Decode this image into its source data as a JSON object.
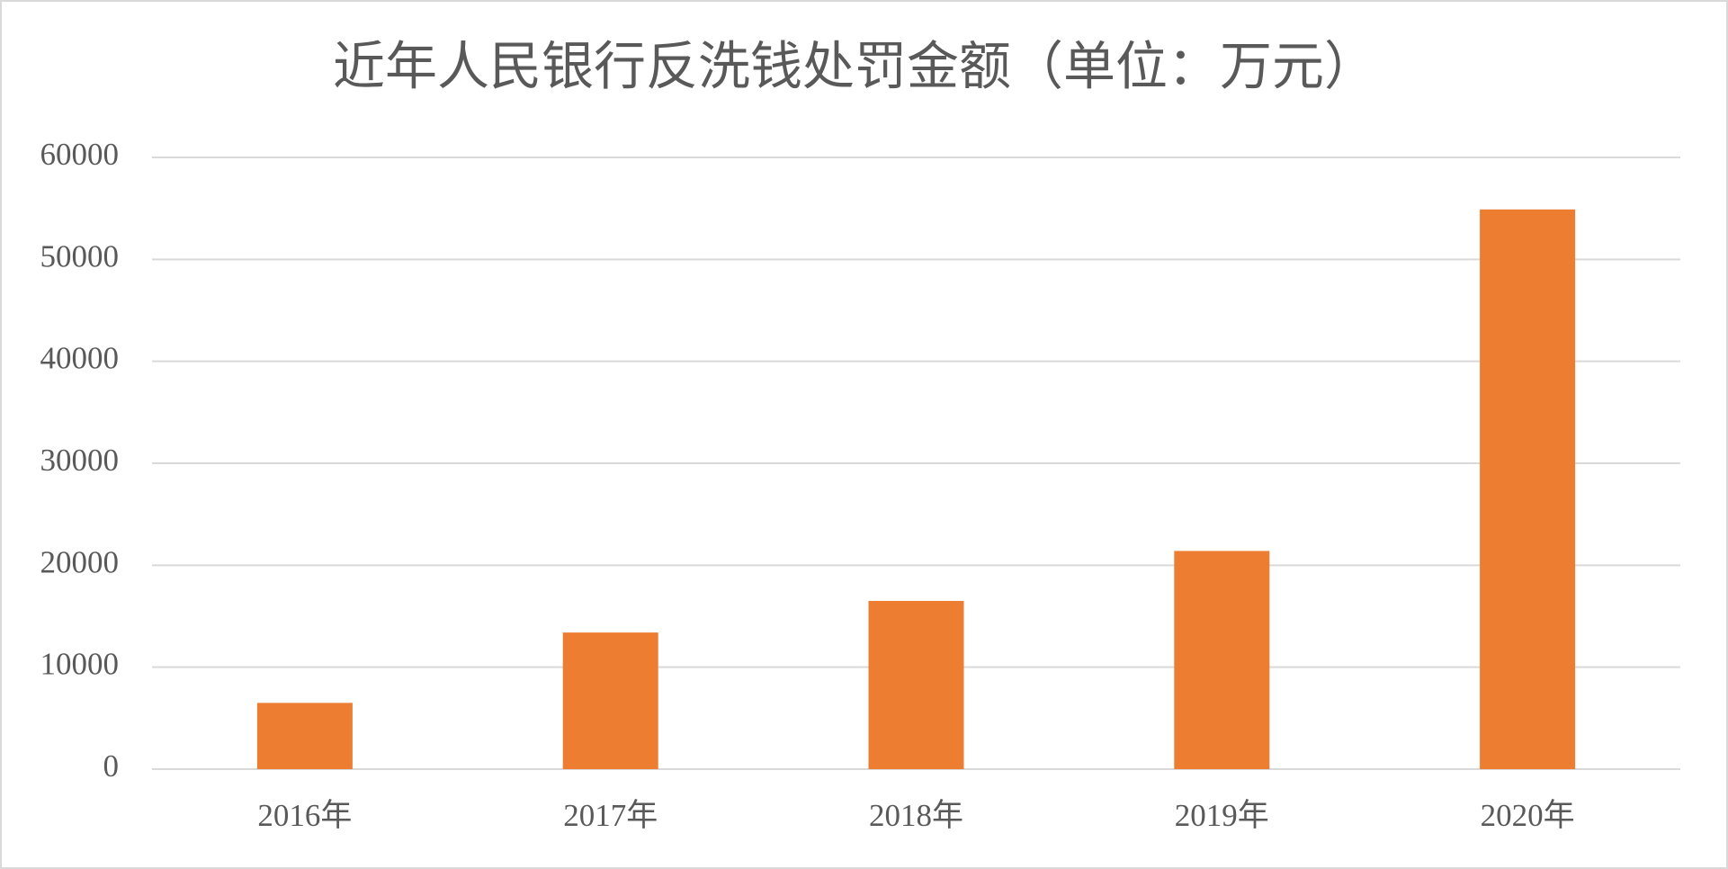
{
  "chart_data": {
    "type": "bar",
    "title": "近年人民银行反洗钱处罚金额（单位：万元）",
    "categories": [
      "2016年",
      "2017年",
      "2018年",
      "2019年",
      "2020年"
    ],
    "values": [
      6500,
      13400,
      16500,
      21400,
      54900
    ],
    "color": "#ed7d31",
    "ylim": [
      0,
      60000
    ],
    "yticks": [
      0,
      10000,
      20000,
      30000,
      40000,
      50000,
      60000
    ],
    "grid": true
  }
}
